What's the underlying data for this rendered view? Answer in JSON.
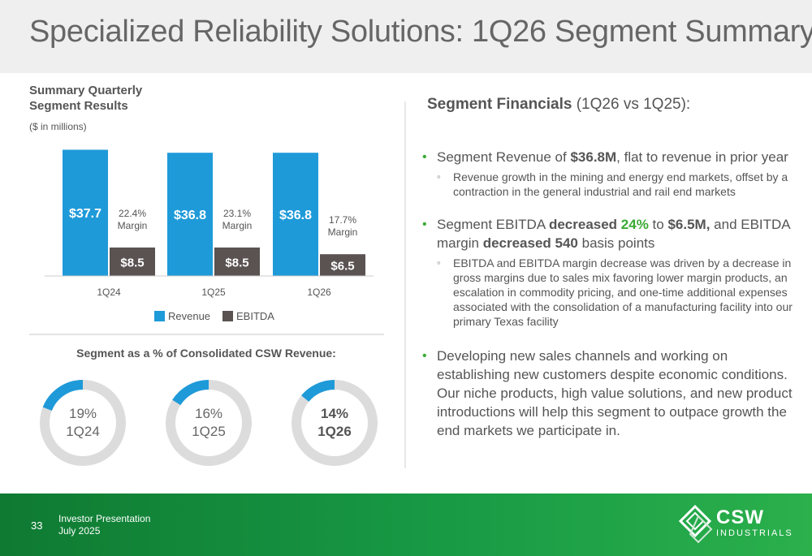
{
  "title": "Specialized Reliability Solutions: 1Q26 Segment Summary",
  "chart_section": {
    "heading_line1": "Summary Quarterly",
    "heading_line2": "Segment Results",
    "units": "($ in millions)"
  },
  "chart_data": {
    "type": "bar",
    "categories": [
      "1Q24",
      "1Q25",
      "1Q26"
    ],
    "series": [
      {
        "name": "Revenue",
        "values": [
          37.7,
          36.8,
          36.8
        ],
        "labels": [
          "$37.7",
          "$36.8",
          "$36.8"
        ],
        "color": "#1f9ad9"
      },
      {
        "name": "EBITDA",
        "values": [
          8.5,
          8.5,
          6.5
        ],
        "labels": [
          "$8.5",
          "$8.5",
          "$6.5"
        ],
        "color": "#5a5352"
      }
    ],
    "margins": [
      {
        "value": "22.4%",
        "label": "Margin"
      },
      {
        "value": "23.1%",
        "label": "Margin"
      },
      {
        "value": "17.7%",
        "label": "Margin"
      }
    ],
    "legend": [
      "Revenue",
      "EBITDA"
    ],
    "legend_position": "bottom",
    "ylim": [
      0,
      40
    ],
    "grid": false
  },
  "donut_section": {
    "heading": "Segment as a % of Consolidated CSW Revenue:",
    "items": [
      {
        "pct": "19%",
        "period": "1Q24",
        "value": 19,
        "bold": false
      },
      {
        "pct": "16%",
        "period": "1Q25",
        "value": 16,
        "bold": false
      },
      {
        "pct": "14%",
        "period": "1Q26",
        "value": 14,
        "bold": true
      }
    ],
    "fill_color": "#1f9ad9",
    "track_color": "#dcdcdc"
  },
  "financials": {
    "title_bold": "Segment Financials",
    "title_rest": " (1Q26 vs 1Q25):",
    "b1_pre": "Segment Revenue of ",
    "b1_bold": "$36.8M",
    "b1_post": ", flat to revenue in prior year",
    "b1_sub": "Revenue growth in the mining and energy end markets, offset by a contraction in the general industrial and rail end markets",
    "b2_pre": "Segment EBITDA ",
    "b2_bold1": "decreased ",
    "b2_green": "24%",
    "b2_mid": " to ",
    "b2_bold2": "$6.5M,",
    "b2_mid2": " and EBITDA margin ",
    "b2_bold3": "decreased 540",
    "b2_post": " basis points",
    "b2_sub": "EBITDA and EBITDA margin decrease was driven by a decrease in gross margins due to sales mix favoring lower margin products, an escalation in commodity pricing, and one-time additional expenses associated with the consolidation of a manufacturing facility into our primary Texas facility",
    "b3": "Developing new sales channels and working on establishing new customers despite economic conditions. Our niche products, high value solutions, and new product introductions will help this segment to outpace growth the end markets we participate in."
  },
  "footer": {
    "page_number": "33",
    "line1": "Investor Presentation",
    "line2": "July 2025",
    "logo_text": "CSW",
    "logo_sub": "INDUSTRIALS"
  }
}
